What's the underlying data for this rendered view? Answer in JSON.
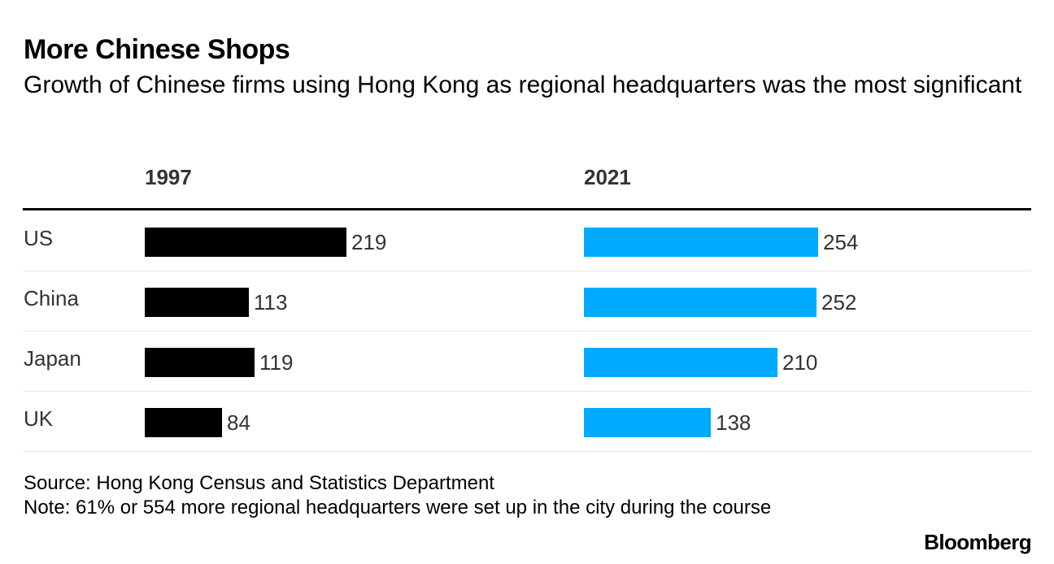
{
  "chart_data": {
    "type": "bar",
    "title": "More Chinese Shops",
    "subtitle": "Growth of Chinese firms using Hong Kong as regional headquarters was the most significant",
    "categories": [
      "US",
      "China",
      "Japan",
      "UK"
    ],
    "series": [
      {
        "name": "1997",
        "values": [
          219,
          113,
          119,
          84
        ],
        "color": "#000000"
      },
      {
        "name": "2021",
        "values": [
          254,
          252,
          210,
          138
        ],
        "color": "#00aaff"
      }
    ],
    "xlabel": "",
    "ylabel": "",
    "xlim": [
      0,
      254
    ]
  },
  "footer": {
    "source": "Source: Hong Kong Census and Statistics Department",
    "note": "Note: 61% or 554 more regional headquarters were set up in the city during the course"
  },
  "branding": {
    "logo_text": "Bloomberg"
  }
}
